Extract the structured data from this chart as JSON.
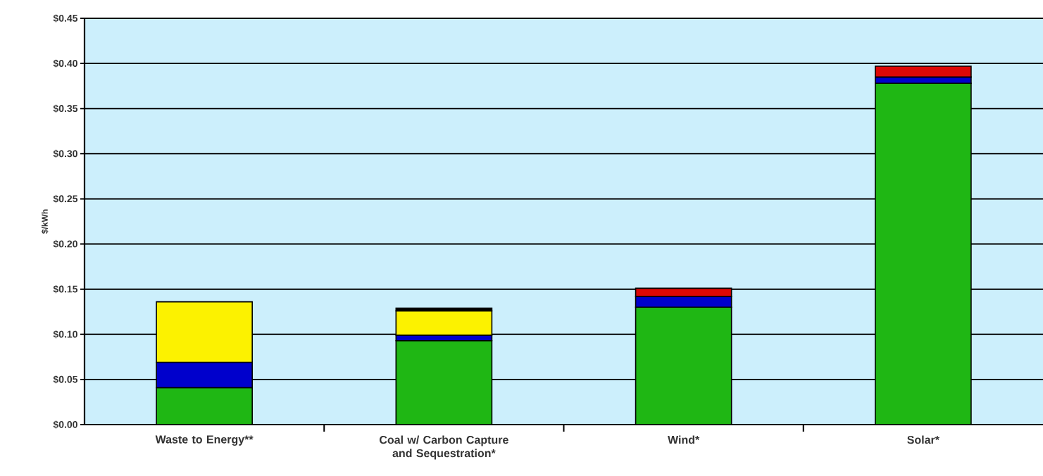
{
  "chart_data": {
    "type": "bar",
    "stacked": true,
    "ylabel": "$/kWh",
    "categories": [
      "Waste to Energy**",
      "Coal w/ Carbon Capture and Sequestration*",
      "Wind*",
      "Solar*"
    ],
    "series": [
      {
        "color": "#1fb714",
        "values": [
          0.041,
          0.093,
          0.13,
          0.378
        ]
      },
      {
        "color": "#0000cc",
        "values": [
          0.028,
          0.006,
          0.012,
          0.007
        ]
      },
      {
        "color": "#fcf200",
        "values": [
          0.067,
          0.027,
          null,
          null
        ]
      },
      {
        "color": "#000000",
        "values": [
          null,
          0.003,
          null,
          null
        ]
      },
      {
        "color": "#dd0806",
        "values": [
          null,
          null,
          0.009,
          0.012
        ]
      }
    ],
    "ylim": [
      0,
      0.45
    ],
    "yticks": [
      {
        "value": 0,
        "label": "$0.00"
      },
      {
        "value": 0.05,
        "label": "$0.05"
      },
      {
        "value": 0.1,
        "label": "$0.10"
      },
      {
        "value": 0.15,
        "label": "$0.15"
      },
      {
        "value": 0.2,
        "label": "$0.20"
      },
      {
        "value": 0.25,
        "label": "$0.25"
      },
      {
        "value": 0.3,
        "label": "$0.30"
      },
      {
        "value": 0.35,
        "label": "$0.35"
      },
      {
        "value": 0.4,
        "label": "$0.40"
      },
      {
        "value": 0.45,
        "label": "$0.45"
      }
    ],
    "grid": "y"
  }
}
